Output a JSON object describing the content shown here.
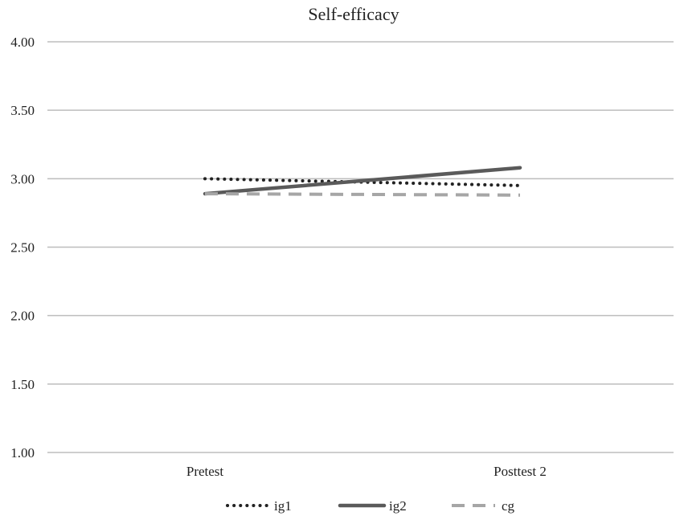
{
  "chart_data": {
    "type": "line",
    "title": "Self-efficacy",
    "categories": [
      "Pretest",
      "Posttest 2"
    ],
    "ylim": [
      1.0,
      4.0
    ],
    "yticks": [
      "1.00",
      "1.50",
      "2.00",
      "2.50",
      "3.00",
      "3.50",
      "4.00"
    ],
    "grid": true,
    "legend_position": "bottom",
    "series": [
      {
        "name": "ig1",
        "values": [
          3.0,
          2.95
        ],
        "style": "dotted",
        "color": "#222222"
      },
      {
        "name": "ig2",
        "values": [
          2.89,
          3.08
        ],
        "style": "solid",
        "color": "#5a5a5a"
      },
      {
        "name": "cg",
        "values": [
          2.89,
          2.88
        ],
        "style": "dashed",
        "color": "#a6a6a6"
      }
    ]
  }
}
